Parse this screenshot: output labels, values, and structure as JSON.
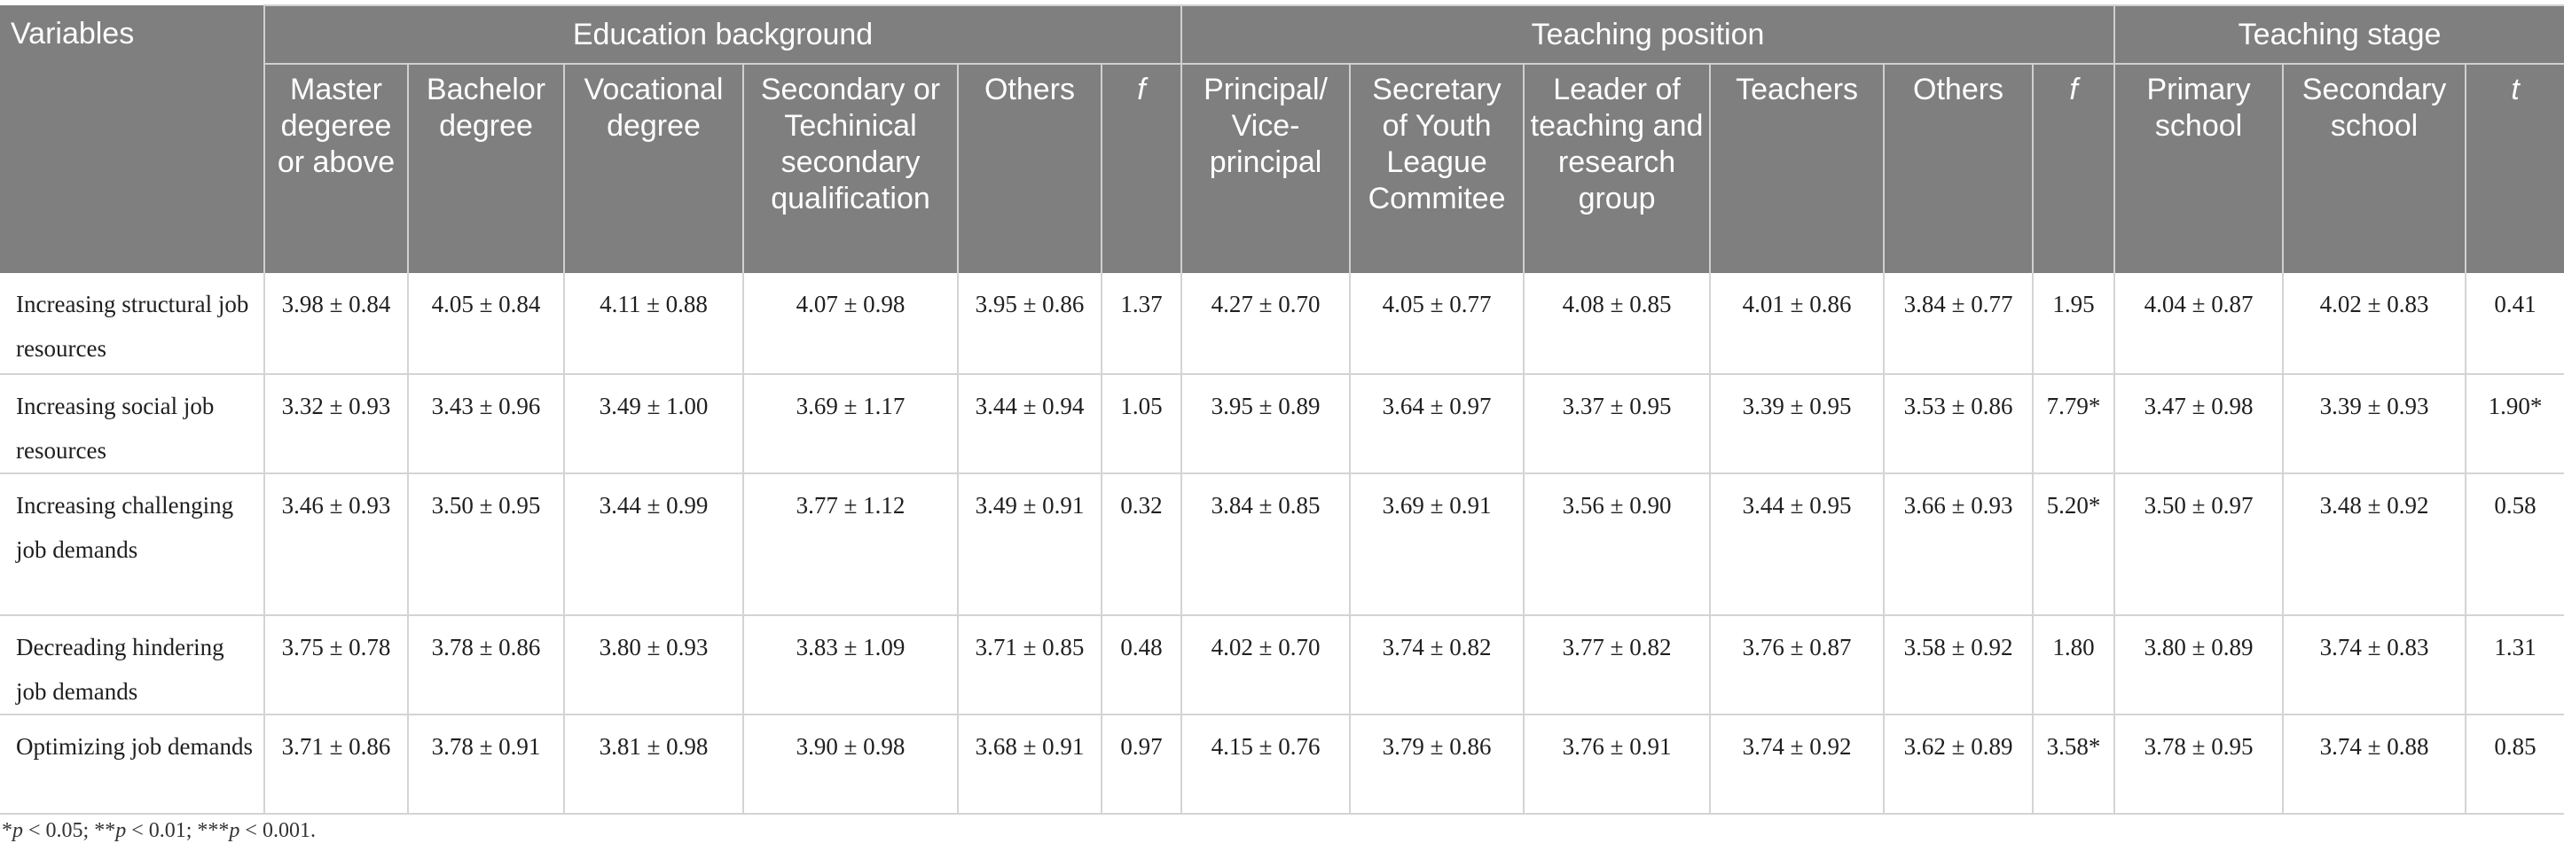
{
  "header": {
    "variables": "Variables",
    "groups": {
      "education": "Education background",
      "position": "Teaching position",
      "stage": "Teaching stage"
    },
    "education_cols": [
      "Master degeree or above",
      "Bachelor degree",
      "Vocational degree",
      "Secondary or Techinical secondary qualification",
      "Others",
      "f"
    ],
    "position_cols": [
      "Principal/ Vice-principal",
      "Secretary of Youth League Commitee",
      "Leader of teaching and research group",
      "Teachers",
      "Others",
      "f"
    ],
    "stage_cols": [
      "Primary school",
      "Secondary school",
      "t"
    ]
  },
  "rows": [
    {
      "label": "Increasing structural job resources",
      "education": [
        "3.98 ± 0.84",
        "4.05 ± 0.84",
        "4.11 ± 0.88",
        "4.07 ± 0.98",
        "3.95 ± 0.86",
        "1.37"
      ],
      "position": [
        "4.27 ± 0.70",
        "4.05 ± 0.77",
        "4.08 ± 0.85",
        "4.01 ± 0.86",
        "3.84 ± 0.77",
        "1.95"
      ],
      "stage": [
        "4.04 ± 0.87",
        "4.02 ± 0.83",
        "0.41"
      ]
    },
    {
      "label": "Increasing social job resources",
      "education": [
        "3.32 ± 0.93",
        "3.43 ± 0.96",
        "3.49 ± 1.00",
        "3.69 ± 1.17",
        "3.44 ± 0.94",
        "1.05"
      ],
      "position": [
        "3.95 ± 0.89",
        "3.64 ± 0.97",
        "3.37 ± 0.95",
        "3.39 ± 0.95",
        "3.53 ± 0.86",
        "7.79*"
      ],
      "stage": [
        "3.47 ± 0.98",
        "3.39 ± 0.93",
        "1.90*"
      ]
    },
    {
      "label": "Increasing challenging job demands",
      "education": [
        "3.46 ± 0.93",
        "3.50 ± 0.95",
        "3.44 ± 0.99",
        "3.77 ± 1.12",
        "3.49 ± 0.91",
        "0.32"
      ],
      "position": [
        "3.84 ± 0.85",
        "3.69 ± 0.91",
        "3.56 ± 0.90",
        "3.44 ± 0.95",
        "3.66 ± 0.93",
        "5.20*"
      ],
      "stage": [
        "3.50 ± 0.97",
        "3.48 ± 0.92",
        "0.58"
      ]
    },
    {
      "label": "Decreading hindering job demands",
      "education": [
        "3.75 ± 0.78",
        "3.78 ± 0.86",
        "3.80 ± 0.93",
        "3.83 ± 1.09",
        "3.71 ± 0.85",
        "0.48"
      ],
      "position": [
        "4.02 ± 0.70",
        "3.74 ± 0.82",
        "3.77 ± 0.82",
        "3.76 ± 0.87",
        "3.58 ± 0.92",
        "1.80"
      ],
      "stage": [
        "3.80 ± 0.89",
        "3.74 ± 0.83",
        "1.31"
      ]
    },
    {
      "label": "Optimizing job demands",
      "education": [
        "3.71 ± 0.86",
        "3.78 ± 0.91",
        "3.81 ± 0.98",
        "3.90 ± 0.98",
        "3.68 ± 0.91",
        "0.97"
      ],
      "position": [
        "4.15 ± 0.76",
        "3.79 ± 0.86",
        "3.76 ± 0.91",
        "3.74 ± 0.92",
        "3.62 ± 0.89",
        "3.58*"
      ],
      "stage": [
        "3.78 ± 0.95",
        "3.74 ± 0.88",
        "0.85"
      ]
    }
  ],
  "footnote": {
    "s1": "*",
    "p1": "p",
    "t1": " < 0.05; **",
    "p2": "p",
    "t2": " < 0.01; ***",
    "p3": "p",
    "t3": " < 0.001."
  }
}
